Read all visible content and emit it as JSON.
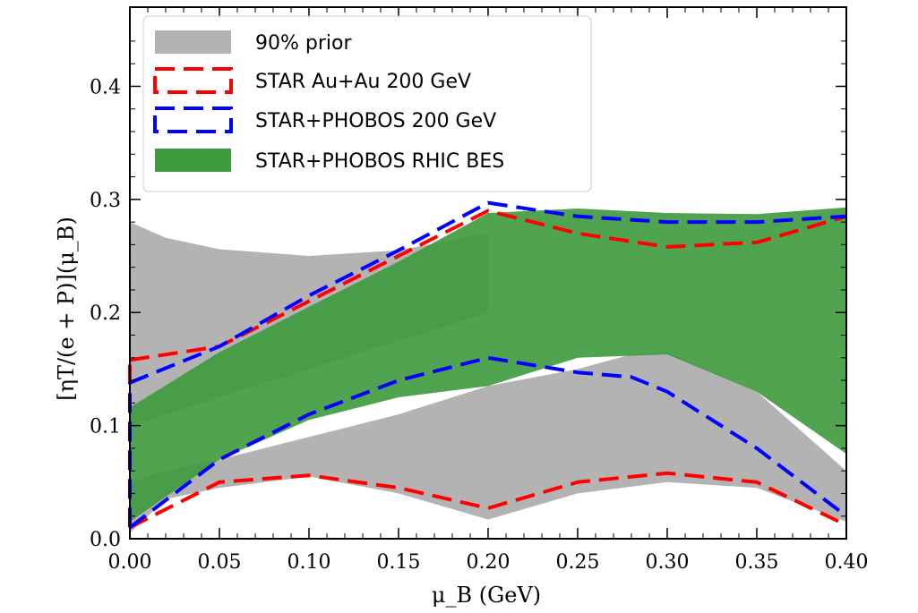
{
  "chart_data": {
    "type": "area",
    "xlabel": "μ_B (GeV)",
    "ylabel": "[ηT/(e + P)](μ_B)",
    "xlim": [
      0.0,
      0.4
    ],
    "ylim": [
      0.0,
      0.47
    ],
    "xticks": [
      "0.00",
      "0.05",
      "0.10",
      "0.15",
      "0.20",
      "0.25",
      "0.30",
      "0.35",
      "0.40"
    ],
    "yticks": [
      "0.0",
      "0.1",
      "0.2",
      "0.3",
      "0.4"
    ],
    "legend_position": "top-left",
    "grid": false,
    "series": [
      {
        "name": "90% prior",
        "kind": "band",
        "color": "#b3b3b3",
        "upper": [
          [
            0.0,
            0.28
          ],
          [
            0.02,
            0.266
          ],
          [
            0.05,
            0.256
          ],
          [
            0.1,
            0.25
          ],
          [
            0.15,
            0.255
          ],
          [
            0.2,
            0.27
          ]
        ],
        "lower": [
          [
            0.0,
            0.005
          ],
          [
            0.02,
            0.035
          ],
          [
            0.05,
            0.045
          ],
          [
            0.1,
            0.055
          ],
          [
            0.15,
            0.04
          ],
          [
            0.2,
            0.017
          ],
          [
            0.25,
            0.04
          ],
          [
            0.3,
            0.05
          ],
          [
            0.35,
            0.045
          ],
          [
            0.4,
            0.015
          ]
        ],
        "mid_upper": [
          [
            0.0,
            0.05
          ],
          [
            0.02,
            0.06
          ],
          [
            0.05,
            0.07
          ],
          [
            0.1,
            0.09
          ],
          [
            0.15,
            0.11
          ],
          [
            0.2,
            0.135
          ],
          [
            0.25,
            0.15
          ],
          [
            0.28,
            0.163
          ],
          [
            0.3,
            0.165
          ],
          [
            0.35,
            0.13
          ],
          [
            0.4,
            0.06
          ]
        ]
      },
      {
        "name": "STAR Au+Au 200 GeV",
        "kind": "dashed-band",
        "color": "#ff0000",
        "upper": [
          [
            0.0,
            0.158
          ],
          [
            0.05,
            0.17
          ],
          [
            0.1,
            0.21
          ],
          [
            0.15,
            0.25
          ],
          [
            0.2,
            0.29
          ],
          [
            0.25,
            0.27
          ],
          [
            0.3,
            0.258
          ],
          [
            0.35,
            0.262
          ],
          [
            0.4,
            0.285
          ]
        ],
        "lower": [
          [
            0.0,
            0.01
          ],
          [
            0.05,
            0.05
          ],
          [
            0.1,
            0.056
          ],
          [
            0.15,
            0.045
          ],
          [
            0.2,
            0.027
          ],
          [
            0.25,
            0.05
          ],
          [
            0.3,
            0.058
          ],
          [
            0.35,
            0.05
          ],
          [
            0.4,
            0.012
          ]
        ]
      },
      {
        "name": "STAR+PHOBOS 200 GeV",
        "kind": "dashed-band",
        "color": "#0000ff",
        "upper": [
          [
            0.0,
            0.138
          ],
          [
            0.05,
            0.17
          ],
          [
            0.1,
            0.215
          ],
          [
            0.15,
            0.255
          ],
          [
            0.2,
            0.297
          ],
          [
            0.25,
            0.285
          ],
          [
            0.3,
            0.28
          ],
          [
            0.35,
            0.28
          ],
          [
            0.4,
            0.285
          ]
        ],
        "lower": [
          [
            0.0,
            0.01
          ],
          [
            0.05,
            0.07
          ],
          [
            0.1,
            0.11
          ],
          [
            0.15,
            0.14
          ],
          [
            0.2,
            0.16
          ],
          [
            0.25,
            0.147
          ],
          [
            0.28,
            0.143
          ],
          [
            0.3,
            0.13
          ],
          [
            0.35,
            0.08
          ],
          [
            0.4,
            0.02
          ]
        ]
      },
      {
        "name": "STAR+PHOBOS RHIC BES",
        "kind": "band",
        "color": "#3d9a3d",
        "upper": [
          [
            0.0,
            0.116
          ],
          [
            0.05,
            0.165
          ],
          [
            0.1,
            0.205
          ],
          [
            0.15,
            0.245
          ],
          [
            0.2,
            0.288
          ],
          [
            0.25,
            0.292
          ],
          [
            0.3,
            0.288
          ],
          [
            0.35,
            0.287
          ],
          [
            0.4,
            0.293
          ]
        ],
        "lower": [
          [
            0.0,
            0.015
          ],
          [
            0.05,
            0.07
          ],
          [
            0.1,
            0.105
          ],
          [
            0.15,
            0.125
          ],
          [
            0.2,
            0.135
          ],
          [
            0.25,
            0.16
          ],
          [
            0.3,
            0.163
          ],
          [
            0.35,
            0.13
          ],
          [
            0.4,
            0.075
          ]
        ]
      }
    ]
  }
}
